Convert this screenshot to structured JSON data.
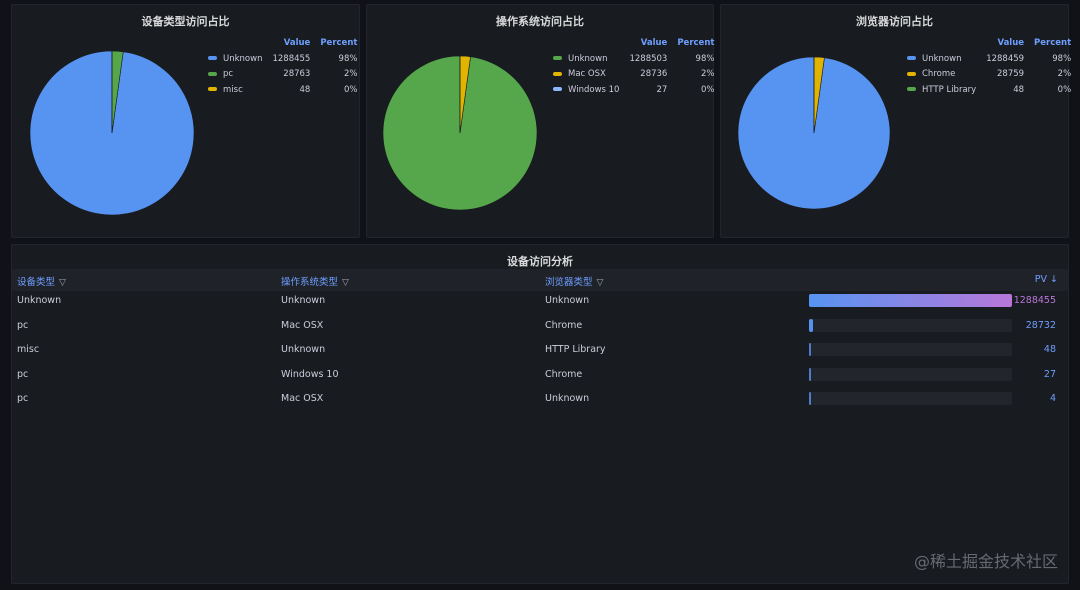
{
  "panels": [
    {
      "title": "设备类型访问占比",
      "value_header": "Value",
      "percent_header": "Percent",
      "items": [
        {
          "label": "Unknown",
          "value": 1288455,
          "value_text": "1288455",
          "percent": "98%",
          "color": "#5794f2"
        },
        {
          "label": "pc",
          "value": 28763,
          "value_text": "28763",
          "percent": "2%",
          "color": "#56a64b"
        },
        {
          "label": "misc",
          "value": 48,
          "value_text": "48",
          "percent": "0%",
          "color": "#e0b400"
        }
      ]
    },
    {
      "title": "操作系统访问占比",
      "value_header": "Value",
      "percent_header": "Percent",
      "items": [
        {
          "label": "Unknown",
          "value": 1288503,
          "value_text": "1288503",
          "percent": "98%",
          "color": "#56a64b"
        },
        {
          "label": "Mac OSX",
          "value": 28736,
          "value_text": "28736",
          "percent": "2%",
          "color": "#e0b400"
        },
        {
          "label": "Windows 10",
          "value": 27,
          "value_text": "27",
          "percent": "0%",
          "color": "#8ab8ff"
        }
      ]
    },
    {
      "title": "浏览器访问占比",
      "value_header": "Value",
      "percent_header": "Percent",
      "items": [
        {
          "label": "Unknown",
          "value": 1288459,
          "value_text": "1288459",
          "percent": "98%",
          "color": "#5794f2"
        },
        {
          "label": "Chrome",
          "value": 28759,
          "value_text": "28759",
          "percent": "2%",
          "color": "#e0b400"
        },
        {
          "label": "HTTP Library",
          "value": 48,
          "value_text": "48",
          "percent": "0%",
          "color": "#56a64b"
        }
      ]
    }
  ],
  "table": {
    "title": "设备访问分析",
    "columns": [
      "设备类型",
      "操作系统类型",
      "浏览器类型",
      "PV"
    ],
    "sort_indicator": "↓",
    "max_pv": 1288455,
    "rows": [
      {
        "device": "Unknown",
        "os": "Unknown",
        "browser": "Unknown",
        "pv": 1288455,
        "pv_text": "1288455"
      },
      {
        "device": "pc",
        "os": "Mac OSX",
        "browser": "Chrome",
        "pv": 28732,
        "pv_text": "28732"
      },
      {
        "device": "misc",
        "os": "Unknown",
        "browser": "HTTP Library",
        "pv": 48,
        "pv_text": "48"
      },
      {
        "device": "pc",
        "os": "Windows 10",
        "browser": "Chrome",
        "pv": 27,
        "pv_text": "27"
      },
      {
        "device": "pc",
        "os": "Mac OSX",
        "browser": "Unknown",
        "pv": 4,
        "pv_text": "4"
      }
    ]
  },
  "watermark": "@稀土掘金技术社区",
  "colors": {
    "gradient_start": "#5794f2",
    "gradient_end": "#b877d9",
    "text_blue": "#6e9fff"
  }
}
